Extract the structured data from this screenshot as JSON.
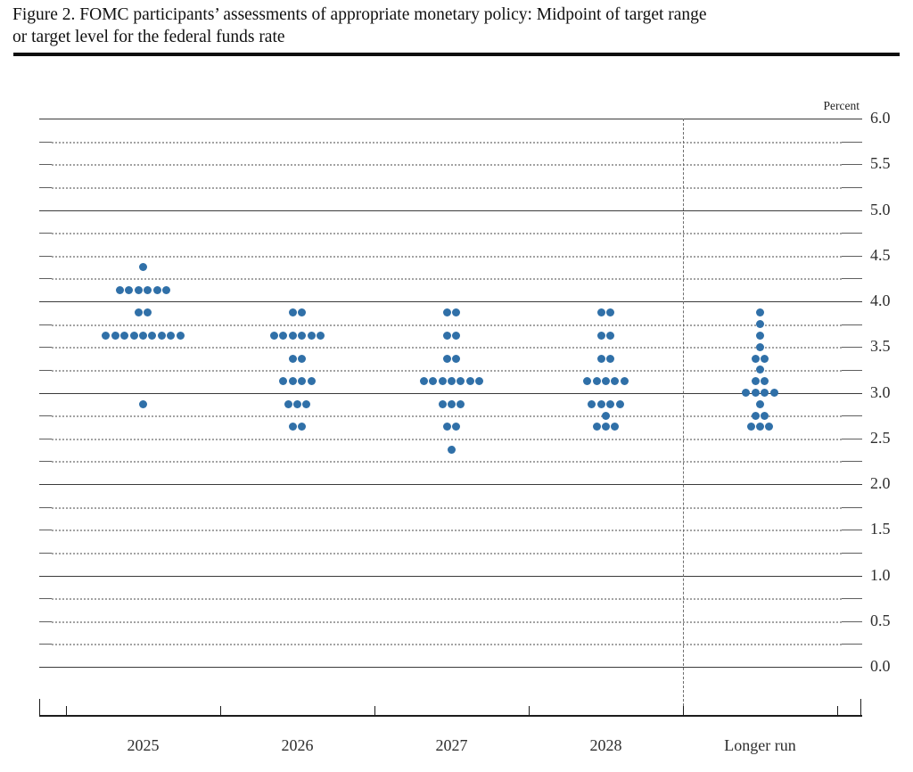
{
  "figure": {
    "title_line1": "Figure 2. FOMC participants’ assessments of appropriate monetary policy: Midpoint of target range",
    "title_line2": "or target level for the federal funds rate"
  },
  "chart_data": {
    "type": "scatter",
    "subtype": "fomc-dot-plot",
    "title": "FOMC participants’ assessments of appropriate monetary policy: Midpoint of target range or target level for the federal funds rate",
    "unit_label": "Percent",
    "y_axis": {
      "min": 0.0,
      "max": 6.0,
      "grid_step": 0.25,
      "label_step": 0.5,
      "solid_line_step": 1.0,
      "tick_labels": [
        "6.0",
        "5.5",
        "5.0",
        "4.5",
        "4.0",
        "3.5",
        "3.0",
        "2.5",
        "2.0",
        "1.5",
        "1.0",
        "0.5",
        "0.0"
      ]
    },
    "categories": [
      "2025",
      "2026",
      "2027",
      "2028",
      "Longer run"
    ],
    "separator_after_category_index": 3,
    "grid": "dotted-quarters-solid-integers",
    "legend_position": "none",
    "dot_color": "#3070a8",
    "series": [
      {
        "name": "2025",
        "dots": [
          {
            "rate": 4.375,
            "count": 1
          },
          {
            "rate": 4.125,
            "count": 6
          },
          {
            "rate": 3.875,
            "count": 2
          },
          {
            "rate": 3.625,
            "count": 9
          },
          {
            "rate": 2.875,
            "count": 1
          }
        ]
      },
      {
        "name": "2026",
        "dots": [
          {
            "rate": 3.875,
            "count": 2
          },
          {
            "rate": 3.625,
            "count": 6
          },
          {
            "rate": 3.375,
            "count": 2
          },
          {
            "rate": 3.125,
            "count": 4
          },
          {
            "rate": 2.875,
            "count": 3
          },
          {
            "rate": 2.625,
            "count": 2
          }
        ]
      },
      {
        "name": "2027",
        "dots": [
          {
            "rate": 3.875,
            "count": 2
          },
          {
            "rate": 3.625,
            "count": 2
          },
          {
            "rate": 3.375,
            "count": 2
          },
          {
            "rate": 3.125,
            "count": 7
          },
          {
            "rate": 2.875,
            "count": 3
          },
          {
            "rate": 2.625,
            "count": 2
          },
          {
            "rate": 2.375,
            "count": 1
          }
        ]
      },
      {
        "name": "2028",
        "dots": [
          {
            "rate": 3.875,
            "count": 2
          },
          {
            "rate": 3.625,
            "count": 2
          },
          {
            "rate": 3.375,
            "count": 2
          },
          {
            "rate": 3.125,
            "count": 5
          },
          {
            "rate": 2.875,
            "count": 4
          },
          {
            "rate": 2.75,
            "count": 1
          },
          {
            "rate": 2.625,
            "count": 3
          }
        ]
      },
      {
        "name": "Longer run",
        "dots": [
          {
            "rate": 3.875,
            "count": 1
          },
          {
            "rate": 3.75,
            "count": 1
          },
          {
            "rate": 3.625,
            "count": 1
          },
          {
            "rate": 3.5,
            "count": 1
          },
          {
            "rate": 3.375,
            "count": 2
          },
          {
            "rate": 3.25,
            "count": 1
          },
          {
            "rate": 3.125,
            "count": 2
          },
          {
            "rate": 3.0,
            "count": 4
          },
          {
            "rate": 2.875,
            "count": 1
          },
          {
            "rate": 2.75,
            "count": 2
          },
          {
            "rate": 2.625,
            "count": 3
          }
        ]
      }
    ]
  }
}
